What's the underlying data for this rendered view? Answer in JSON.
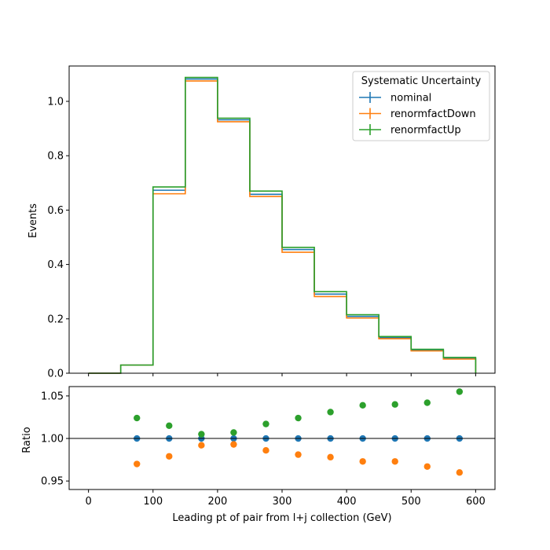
{
  "chart_data": {
    "type": "histogram",
    "x_edges": [
      0,
      50,
      100,
      150,
      200,
      250,
      300,
      350,
      400,
      450,
      500,
      550,
      600
    ],
    "xlabel": "Leading pt of pair from l+j collection (GeV)",
    "xlim": [
      -30,
      630
    ],
    "xticks": [
      0,
      100,
      200,
      300,
      400,
      500,
      600
    ],
    "main": {
      "ylabel": "Events",
      "ylim": [
        0,
        1.13
      ],
      "yticks": [
        "0.0",
        "0.2",
        "0.4",
        "0.6",
        "0.8",
        "1.0"
      ],
      "legend": {
        "title": "Systematic Uncertainty",
        "placement": "upper-right"
      },
      "series": [
        {
          "name": "nominal",
          "color": "#1f77b4",
          "values": [
            0.0,
            0.03,
            0.673,
            1.082,
            0.932,
            0.658,
            0.455,
            0.291,
            0.209,
            0.131,
            0.085,
            0.055
          ]
        },
        {
          "name": "renormfactDown",
          "color": "#ff7f0e",
          "values": [
            0.0,
            0.03,
            0.66,
            1.075,
            0.925,
            0.65,
            0.445,
            0.282,
            0.203,
            0.127,
            0.082,
            0.052
          ]
        },
        {
          "name": "renormfactUp",
          "color": "#2ca02c",
          "values": [
            0.0,
            0.03,
            0.685,
            1.088,
            0.938,
            0.67,
            0.463,
            0.3,
            0.215,
            0.135,
            0.088,
            0.058
          ]
        }
      ]
    },
    "ratio": {
      "ylabel": "Ratio",
      "ylim": [
        0.94,
        1.061
      ],
      "yticks": [
        "0.95",
        "1.00",
        "1.05"
      ],
      "reference_line": 1.0,
      "x_centers": [
        75,
        125,
        175,
        225,
        275,
        325,
        375,
        425,
        475,
        525,
        575
      ],
      "series": [
        {
          "name": "nominal",
          "color": "#1f77b4",
          "values": [
            1.0,
            1.0,
            1.0,
            1.0,
            1.0,
            1.0,
            1.0,
            1.0,
            1.0,
            1.0,
            1.0
          ]
        },
        {
          "name": "renormfactDown",
          "color": "#ff7f0e",
          "values": [
            0.97,
            0.979,
            0.992,
            0.993,
            0.986,
            0.981,
            0.978,
            0.973,
            0.973,
            0.967,
            0.96
          ]
        },
        {
          "name": "renormfactUp",
          "color": "#2ca02c",
          "values": [
            1.024,
            1.015,
            1.005,
            1.007,
            1.017,
            1.024,
            1.031,
            1.039,
            1.04,
            1.042,
            1.055
          ]
        }
      ]
    }
  }
}
